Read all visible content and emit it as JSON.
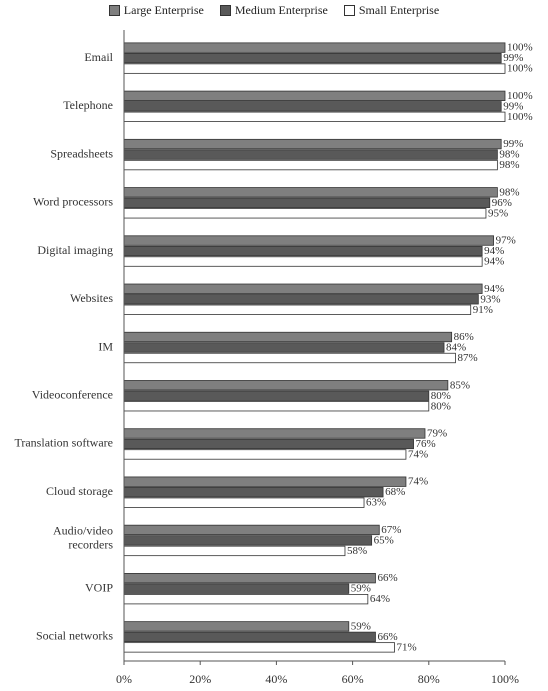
{
  "chart_data": {
    "type": "bar",
    "orientation": "horizontal",
    "categories": [
      "Email",
      "Telephone",
      "Spreadsheets",
      "Word processors",
      "Digital imaging",
      "Websites",
      "IM",
      "Videoconference",
      "Translation software",
      "Cloud storage",
      "Audio/video recorders",
      "VOIP",
      "Social networks"
    ],
    "series": [
      {
        "name": "Large Enterprise",
        "color": "#7f7f7f",
        "values": [
          100,
          100,
          99,
          98,
          97,
          94,
          86,
          85,
          79,
          74,
          67,
          66,
          59
        ]
      },
      {
        "name": "Medium Enterprise",
        "color": "#595959",
        "values": [
          99,
          99,
          98,
          96,
          94,
          93,
          84,
          80,
          76,
          68,
          65,
          59,
          66
        ]
      },
      {
        "name": "Small Enterprise",
        "color": "#ffffff",
        "values": [
          100,
          100,
          98,
          95,
          94,
          91,
          87,
          80,
          74,
          63,
          58,
          64,
          71
        ]
      }
    ],
    "xticks": [
      "0%",
      "20%",
      "40%",
      "60%",
      "80%",
      "100%"
    ],
    "xlim": [
      0,
      100
    ],
    "value_suffix": "%",
    "legend_position": "top",
    "grid": false
  }
}
